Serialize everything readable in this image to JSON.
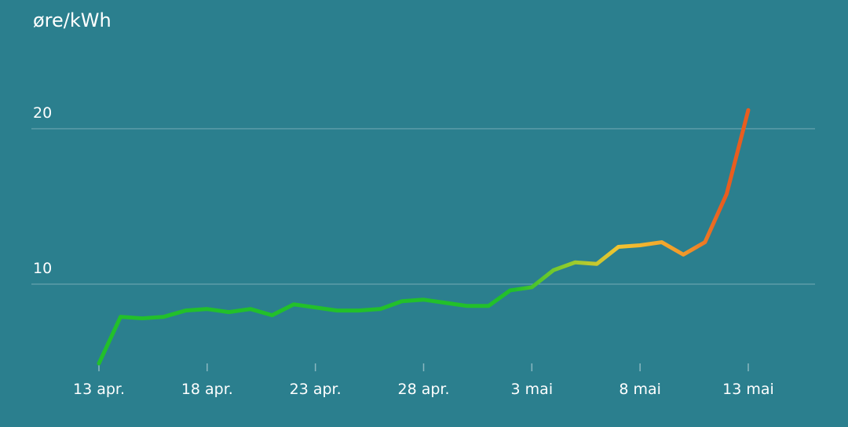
{
  "chart_data": {
    "type": "line",
    "ylabel": "øre/kWh",
    "y_ticks": [
      10,
      20
    ],
    "ylim": [
      4.9,
      21.2
    ],
    "x_ticks": [
      {
        "day": 0,
        "label": "13 apr."
      },
      {
        "day": 5,
        "label": "18 apr."
      },
      {
        "day": 10,
        "label": "23 apr."
      },
      {
        "day": 15,
        "label": "28 apr."
      },
      {
        "day": 20,
        "label": "3 mai"
      },
      {
        "day": 25,
        "label": "8 mai"
      },
      {
        "day": 30,
        "label": "13 mai"
      }
    ],
    "grid": true,
    "colors": {
      "low": "#22c02a",
      "mid": "#f2c431",
      "high": "#e85d1f",
      "background": "#2b7f8e"
    },
    "series": [
      {
        "x": [
          "13 apr.",
          "14 apr.",
          "15 apr.",
          "16 apr.",
          "17 apr.",
          "18 apr.",
          "19 apr.",
          "20 apr.",
          "21 apr.",
          "22 apr.",
          "23 apr.",
          "24 apr.",
          "25 apr.",
          "26 apr.",
          "27 apr.",
          "28 apr.",
          "29 apr.",
          "30 apr.",
          "1 mai",
          "2 mai",
          "3 mai",
          "4 mai",
          "5 mai",
          "6 mai",
          "7 mai",
          "8 mai",
          "9 mai",
          "10 mai",
          "11 mai",
          "12 mai",
          "13 mai"
        ],
        "values": [
          4.9,
          7.9,
          7.8,
          7.9,
          8.3,
          8.4,
          8.2,
          8.4,
          8.0,
          8.7,
          8.5,
          8.3,
          8.3,
          8.4,
          8.9,
          9.0,
          8.8,
          8.6,
          8.6,
          9.6,
          9.8,
          10.9,
          11.4,
          11.3,
          12.4,
          12.5,
          12.7,
          11.9,
          12.7,
          15.8,
          21.2
        ]
      }
    ]
  }
}
